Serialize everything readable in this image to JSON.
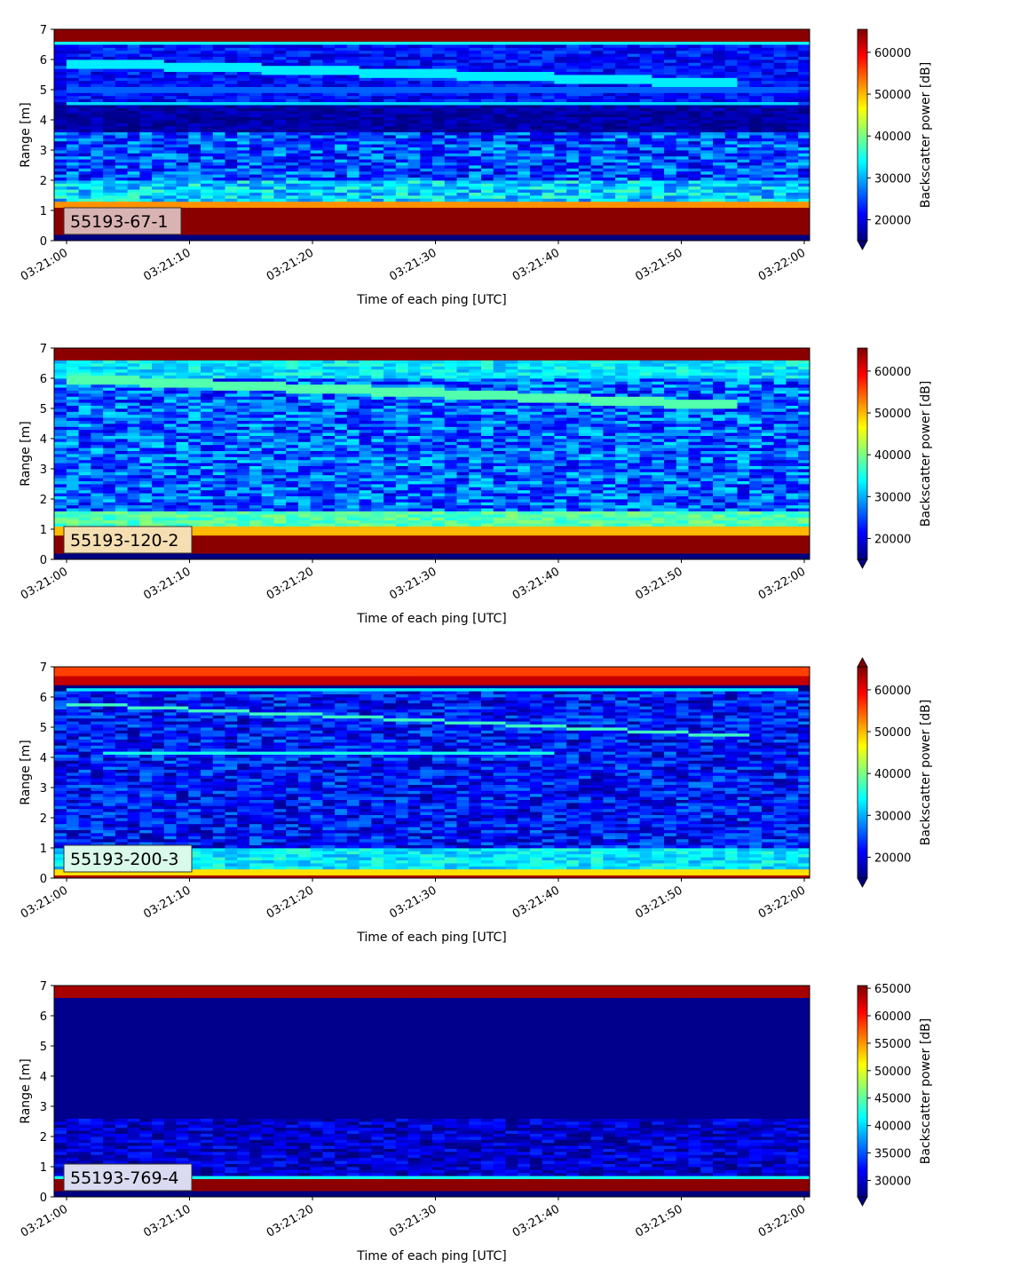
{
  "chart_data": [
    {
      "type": "heatmap",
      "label": "55193-67-1",
      "label_bg": "#d9b2b2",
      "xlabel": "Time of each ping [UTC]",
      "ylabel": "Range [m]",
      "x_ticks": [
        "03:21:00",
        "03:21:10",
        "03:21:20",
        "03:21:30",
        "03:21:40",
        "03:21:50",
        "03:22:00"
      ],
      "ylim": [
        0,
        7
      ],
      "y_ticks": [
        0,
        1,
        2,
        3,
        4,
        5,
        6,
        7
      ],
      "colorbar_label": "Backscatter power [dB]",
      "clim": [
        15000,
        65500
      ],
      "colorbar_ticks": [
        20000,
        30000,
        40000,
        50000,
        60000
      ],
      "colorbar_extend": "min",
      "colormap": "jet",
      "features": [
        {
          "kind": "band",
          "y0": 0.2,
          "y1": 1.1,
          "value": 65000
        },
        {
          "kind": "band",
          "y0": 1.1,
          "y1": 1.3,
          "value": 52000
        },
        {
          "kind": "band",
          "y0": 1.3,
          "y1": 2.0,
          "value": 32000,
          "noise": 6000
        },
        {
          "kind": "band",
          "y0": 2.0,
          "y1": 3.6,
          "value": 25000,
          "noise": 7000
        },
        {
          "kind": "band",
          "y0": 3.6,
          "y1": 4.5,
          "value": 17000,
          "noise": 2500
        },
        {
          "kind": "band",
          "y0": 4.5,
          "y1": 6.5,
          "value": 22000,
          "noise": 4000
        },
        {
          "kind": "line",
          "t0": 0,
          "y0": 5.9,
          "t1": 55,
          "y1": 5.2,
          "w": 0.3,
          "value": 33000
        },
        {
          "kind": "line",
          "t0": 0,
          "y0": 4.6,
          "t1": 60,
          "y1": 4.6,
          "w": 0.1,
          "value": 32000
        },
        {
          "kind": "line",
          "t0": 0,
          "y0": 5.0,
          "t1": 60,
          "y1": 5.0,
          "w": 0.15,
          "value": 26000
        },
        {
          "kind": "band",
          "y0": 6.5,
          "y1": 6.6,
          "value": 35000
        },
        {
          "kind": "band",
          "y0": 6.6,
          "y1": 7.0,
          "value": 65000
        }
      ]
    },
    {
      "type": "heatmap",
      "label": "55193-120-2",
      "label_bg": "#f5dfb2",
      "xlabel": "Time of each ping [UTC]",
      "ylabel": "Range [m]",
      "x_ticks": [
        "03:21:00",
        "03:21:10",
        "03:21:20",
        "03:21:30",
        "03:21:40",
        "03:21:50",
        "03:22:00"
      ],
      "ylim": [
        0,
        7
      ],
      "y_ticks": [
        0,
        1,
        2,
        3,
        4,
        5,
        6,
        7
      ],
      "colorbar_label": "Backscatter power [dB]",
      "clim": [
        15000,
        65500
      ],
      "colorbar_ticks": [
        20000,
        30000,
        40000,
        50000,
        60000
      ],
      "colorbar_extend": "min",
      "colormap": "jet",
      "features": [
        {
          "kind": "band",
          "y0": 0.2,
          "y1": 0.8,
          "value": 65000
        },
        {
          "kind": "band",
          "y0": 0.8,
          "y1": 1.1,
          "value": 50000
        },
        {
          "kind": "band",
          "y0": 1.1,
          "y1": 1.6,
          "value": 38000,
          "noise": 3000
        },
        {
          "kind": "band",
          "y0": 1.6,
          "y1": 6.0,
          "value": 26000,
          "noise": 7000
        },
        {
          "kind": "band",
          "y0": 6.0,
          "y1": 6.6,
          "value": 33000,
          "noise": 4000
        },
        {
          "kind": "line",
          "t0": 0,
          "y0": 6.0,
          "t1": 55,
          "y1": 5.1,
          "w": 0.3,
          "value": 38000
        },
        {
          "kind": "band",
          "y0": 6.6,
          "y1": 7.0,
          "value": 65000
        }
      ]
    },
    {
      "type": "heatmap",
      "label": "55193-200-3",
      "label_bg": "#d9f9ea",
      "xlabel": "Time of each ping [UTC]",
      "ylabel": "Range [m]",
      "x_ticks": [
        "03:21:00",
        "03:21:10",
        "03:21:20",
        "03:21:30",
        "03:21:40",
        "03:21:50",
        "03:22:00"
      ],
      "ylim": [
        0,
        7
      ],
      "y_ticks": [
        0,
        1,
        2,
        3,
        4,
        5,
        6,
        7
      ],
      "colorbar_label": "Backscatter power [dB]",
      "clim": [
        15000,
        65500
      ],
      "colorbar_ticks": [
        20000,
        30000,
        40000,
        50000,
        60000
      ],
      "colorbar_extend": "both",
      "colormap": "jet",
      "features": [
        {
          "kind": "band",
          "y0": 0.0,
          "y1": 0.15,
          "value": 63000
        },
        {
          "kind": "band",
          "y0": 0.15,
          "y1": 0.35,
          "value": 48000
        },
        {
          "kind": "band",
          "y0": 0.35,
          "y1": 1.0,
          "value": 33000,
          "noise": 4000
        },
        {
          "kind": "band",
          "y0": 1.0,
          "y1": 6.2,
          "value": 22000,
          "noise": 6000
        },
        {
          "kind": "line",
          "t0": 0,
          "y0": 5.8,
          "t1": 56,
          "y1": 4.7,
          "w": 0.1,
          "value": 37000
        },
        {
          "kind": "line",
          "t0": 2.5,
          "y0": 4.15,
          "t1": 40,
          "y1": 4.15,
          "w": 0.08,
          "value": 35000
        },
        {
          "kind": "line",
          "t0": 2.5,
          "y0": 3.2,
          "t1": 40,
          "y1": 3.2,
          "w": 0.08,
          "value": 32000
        },
        {
          "kind": "line",
          "t0": 0,
          "y0": 6.3,
          "t1": 60,
          "y1": 6.3,
          "w": 0.1,
          "value": 33000
        },
        {
          "kind": "band",
          "y0": 6.4,
          "y1": 6.7,
          "value": 62000
        },
        {
          "kind": "band",
          "y0": 6.7,
          "y1": 7.0,
          "value": 56000
        }
      ]
    },
    {
      "type": "heatmap",
      "label": "55193-769-4",
      "label_bg": "#dadaf0",
      "xlabel": "Time of each ping [UTC]",
      "ylabel": "Range [m]",
      "x_ticks": [
        "03:21:00",
        "03:21:10",
        "03:21:20",
        "03:21:30",
        "03:21:40",
        "03:21:50",
        "03:22:00"
      ],
      "ylim": [
        0,
        7
      ],
      "y_ticks": [
        0,
        1,
        2,
        3,
        4,
        5,
        6,
        7
      ],
      "colorbar_label": "Backscatter power [dB]",
      "clim": [
        27000,
        65500
      ],
      "colorbar_ticks": [
        30000,
        35000,
        40000,
        45000,
        50000,
        55000,
        60000,
        65000
      ],
      "colorbar_extend": "min",
      "colormap": "jet",
      "features": [
        {
          "kind": "band",
          "y0": 0.25,
          "y1": 0.6,
          "value": 65000
        },
        {
          "kind": "band",
          "y0": 0.6,
          "y1": 0.7,
          "value": 42000
        },
        {
          "kind": "band",
          "y0": 0.7,
          "y1": 2.6,
          "value": 30000,
          "noise": 3500
        },
        {
          "kind": "band",
          "y0": 2.6,
          "y1": 6.6,
          "value": 27500
        },
        {
          "kind": "band",
          "y0": 6.6,
          "y1": 6.65,
          "value": 40000
        },
        {
          "kind": "band",
          "y0": 6.65,
          "y1": 7.0,
          "value": 64000
        }
      ]
    }
  ]
}
